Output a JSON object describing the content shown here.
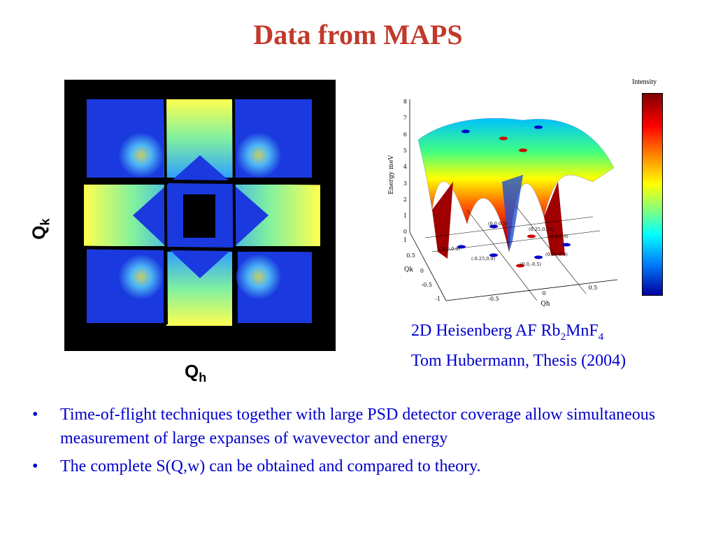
{
  "slide": {
    "title": "Data from MAPS"
  },
  "figure_left": {
    "y_label_main": "Q",
    "y_label_sub": "k",
    "x_label_main": "Q",
    "x_label_sub": "h"
  },
  "figure_right": {
    "z_axis_label": "Energy meV",
    "x_axis_label": "Qh",
    "y_axis_label": "Qk",
    "z_ticks": [
      "0",
      "1",
      "2",
      "3",
      "4",
      "5",
      "6",
      "7",
      "8"
    ],
    "qh_ticks": [
      "-0.5",
      "0",
      "0.5"
    ],
    "qk_ticks": [
      "1",
      "0.5",
      "0",
      "-0.5",
      "-1"
    ],
    "point_labels": [
      "(0.0,0.5)",
      "(0.25,0.25)",
      "(0.5,0.0)",
      "(-0.5,0.0)",
      "(-0.25,0.0)",
      "(0.25,0.0)",
      "(0.0,-0.5)"
    ],
    "colorbar_label": "Intensity"
  },
  "caption": {
    "line1_pre": "2D Heisenberg AF Rb",
    "line1_sub1": "2",
    "line1_mid": "MnF",
    "line1_sub2": "4",
    "line2": "Tom Hubermann, Thesis (2004)"
  },
  "bullets": [
    {
      "dot": "•",
      "text": "Time-of-flight techniques together with large PSD detector coverage allow simultaneous measurement of large expanses of wavevector and energy"
    },
    {
      "dot": "•",
      "text": "The complete S(Q,w) can be obtained and compared to theory."
    }
  ]
}
